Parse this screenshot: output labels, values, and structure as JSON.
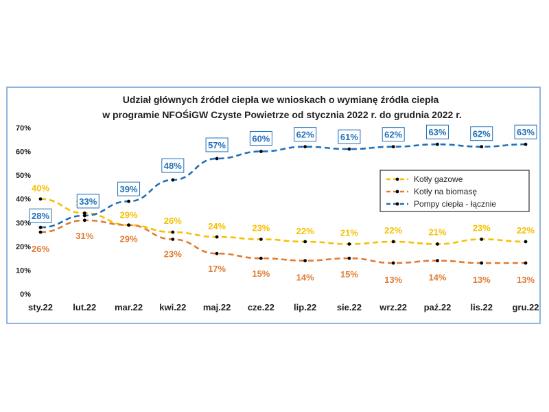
{
  "chart_data": {
    "type": "line",
    "title": [
      "Udział głównych źródeł ciepła we wnioskach o wymianę źródła ciepła",
      "w  programie NFOŚiGW Czyste Powietrze od stycznia 2022 r. do grudnia 2022 r."
    ],
    "categories": [
      "sty.22",
      "lut.22",
      "mar.22",
      "kwi.22",
      "maj.22",
      "cze.22",
      "lip.22",
      "sie.22",
      "wrz.22",
      "paź.22",
      "lis.22",
      "gru.22"
    ],
    "ylim": [
      0,
      70
    ],
    "yticks": [
      "0%",
      "10%",
      "20%",
      "30%",
      "40%",
      "50%",
      "60%",
      "70%"
    ],
    "grid": false,
    "legend_position": "right",
    "series": [
      {
        "name": "Kotły gazowe",
        "color": "#f5c000",
        "labels_boxed": false,
        "values": [
          40,
          34,
          29,
          26,
          24,
          23,
          22,
          21,
          22,
          21,
          23,
          22
        ]
      },
      {
        "name": "Kotły na biomasę",
        "color": "#e07b33",
        "labels_boxed": false,
        "values": [
          26,
          31,
          29,
          23,
          17,
          15,
          14,
          15,
          13,
          14,
          13,
          13
        ]
      },
      {
        "name": "Pompy ciepła - łącznie",
        "color": "#1f6fb8",
        "labels_boxed": true,
        "values": [
          28,
          33,
          39,
          48,
          57,
          60,
          62,
          61,
          62,
          63,
          62,
          63
        ]
      }
    ]
  }
}
